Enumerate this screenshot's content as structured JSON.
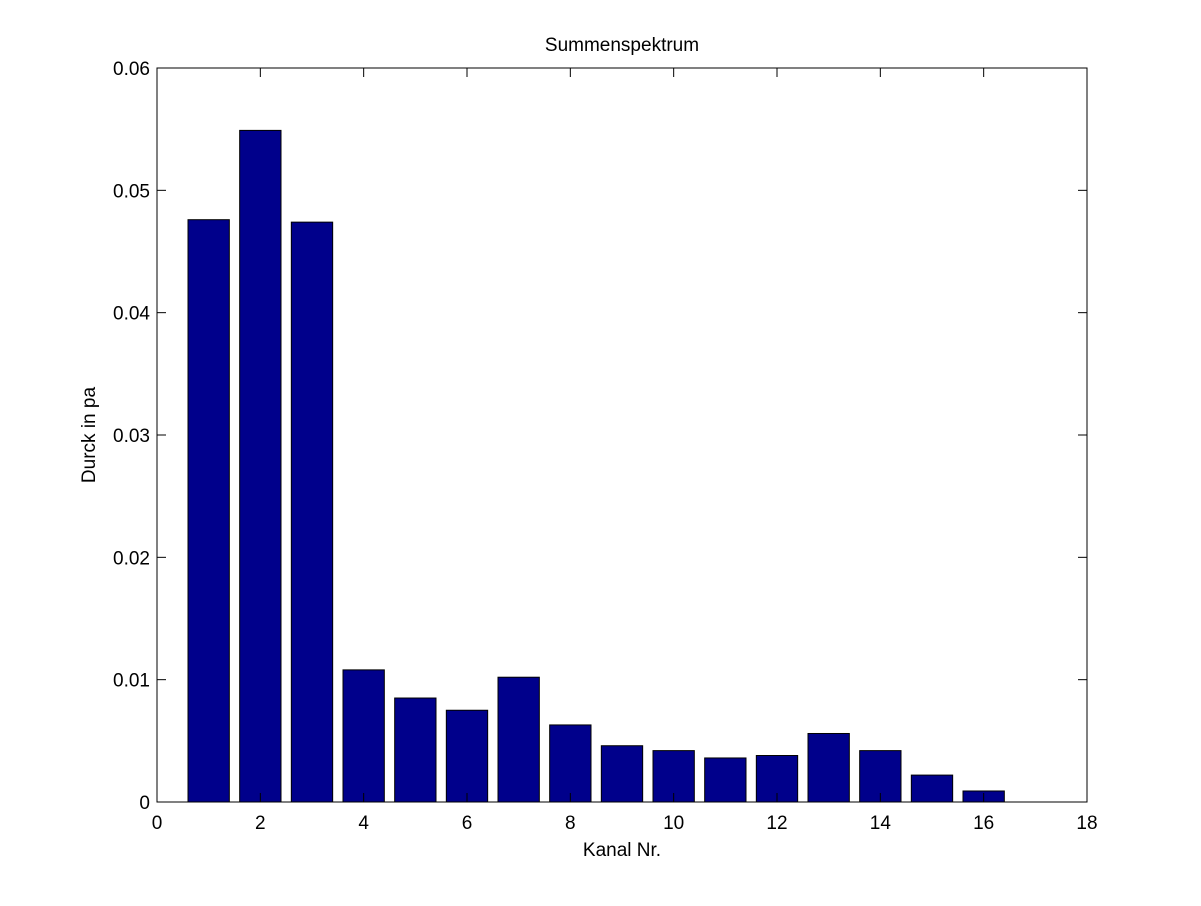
{
  "chart_data": {
    "type": "bar",
    "title": "Summenspektrum",
    "xlabel": "Kanal Nr.",
    "ylabel": "Durck in pa",
    "xlim": [
      0,
      18
    ],
    "ylim": [
      0,
      0.06
    ],
    "xticks": [
      0,
      2,
      4,
      6,
      8,
      10,
      12,
      14,
      16,
      18
    ],
    "xtick_labels": [
      "0",
      "2",
      "4",
      "6",
      "8",
      "10",
      "12",
      "14",
      "16",
      "18"
    ],
    "yticks": [
      0,
      0.01,
      0.02,
      0.03,
      0.04,
      0.05,
      0.06
    ],
    "ytick_labels": [
      "0",
      "0.01",
      "0.02",
      "0.03",
      "0.04",
      "0.05",
      "0.06"
    ],
    "categories": [
      1,
      2,
      3,
      4,
      5,
      6,
      7,
      8,
      9,
      10,
      11,
      12,
      13,
      14,
      15,
      16
    ],
    "values": [
      0.0476,
      0.0549,
      0.0474,
      0.0108,
      0.0085,
      0.0075,
      0.0102,
      0.0063,
      0.0046,
      0.0042,
      0.0036,
      0.0038,
      0.0056,
      0.0042,
      0.0022,
      0.0009
    ],
    "bar_color": "#00008b",
    "grid": false,
    "legend": false
  }
}
